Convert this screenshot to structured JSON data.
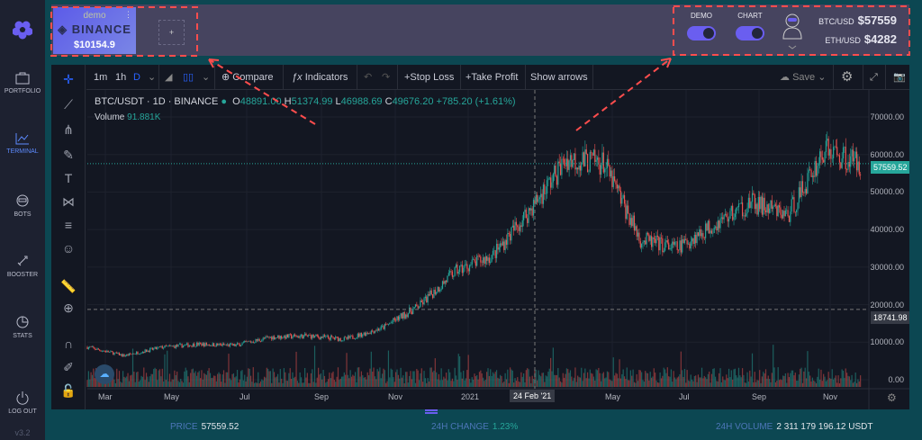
{
  "sidebar": {
    "items": [
      {
        "label": "PORTFOLIO",
        "icon": "briefcase-icon"
      },
      {
        "label": "TERMINAL",
        "icon": "chart-icon",
        "active": true
      },
      {
        "label": "BOTS",
        "icon": "robot-icon"
      },
      {
        "label": "BOOSTER",
        "icon": "rocket-icon"
      },
      {
        "label": "STATS",
        "icon": "pie-icon"
      },
      {
        "label": "LOG OUT",
        "icon": "power-icon"
      }
    ],
    "version": "v3.2"
  },
  "account": {
    "mode": "demo",
    "exchange": "BINANCE",
    "balance": "$10154.9",
    "add_label": "+"
  },
  "toggles": {
    "demo_label": "DEMO",
    "chart_label": "CHART",
    "demo_on": true,
    "chart_on": true
  },
  "prices": [
    {
      "pair": "BTC/USD",
      "value": "$57559"
    },
    {
      "pair": "ETH/USD",
      "value": "$4282"
    }
  ],
  "toolbar": {
    "intervals": [
      "1m",
      "1h",
      "D"
    ],
    "active_interval": "D",
    "compare": "Compare",
    "indicators": "Indicators",
    "stop_loss": "+Stop Loss",
    "take_profit": "+Take Profit",
    "show_arrows": "Show arrows",
    "save": "Save"
  },
  "legend": {
    "symbol": "BTC/USDT · 1D · BINANCE",
    "o": "48891.00",
    "h": "51374.99",
    "l": "46988.69",
    "c": "49676.20",
    "change": "+785.20 (+1.61%)",
    "volume_label": "Volume",
    "volume": "91.881K"
  },
  "colors": {
    "up": "#26a69a",
    "down": "#ef5350",
    "accent": "#6a5ef0",
    "background": "#131722"
  },
  "chart_data": {
    "type": "candlestick",
    "symbol": "BTC/USDT",
    "interval": "1D",
    "y_ticks": [
      "70000.00",
      "60000.00",
      "50000.00",
      "40000.00",
      "30000.00",
      "20000.00",
      "10000.00",
      "0.00"
    ],
    "ylim": [
      0,
      70000
    ],
    "x_ticks": [
      "Mar",
      "May",
      "Jul",
      "Sep",
      "Nov",
      "2021",
      "May",
      "Jul",
      "Sep",
      "Nov"
    ],
    "crosshair_date": "24 Feb '21",
    "last_price": "57559.52",
    "crosshair_price": "18741.98",
    "monthly_closes": {
      "months": [
        "2020-02",
        "2020-03",
        "2020-04",
        "2020-05",
        "2020-06",
        "2020-07",
        "2020-08",
        "2020-09",
        "2020-10",
        "2020-11",
        "2020-12",
        "2021-01",
        "2021-02",
        "2021-03",
        "2021-04",
        "2021-05",
        "2021-06",
        "2021-07",
        "2021-08",
        "2021-09",
        "2021-10",
        "2021-11"
      ],
      "values": [
        8700,
        6400,
        8600,
        9450,
        9140,
        11350,
        11650,
        10780,
        13800,
        19700,
        29000,
        33100,
        45200,
        58800,
        57700,
        37300,
        35000,
        41500,
        47100,
        43800,
        61300,
        57559
      ]
    }
  },
  "footer": {
    "price_label": "PRICE",
    "price": "57559.52",
    "change_label": "24H CHANGE",
    "change": "1.23%",
    "volume_label": "24H VOLUME",
    "volume": "2 311 179 196.12 USDT"
  }
}
